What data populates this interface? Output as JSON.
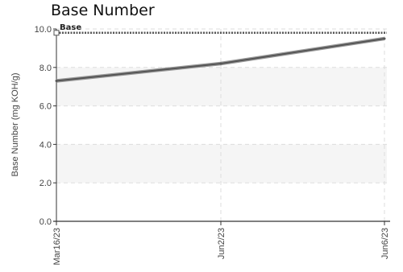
{
  "chart_data": {
    "type": "line",
    "title": "Base Number",
    "ylabel": "Base Number (mg KOH/g)",
    "xlabel": "",
    "ylim": [
      0,
      10
    ],
    "y_ticks": [
      "0.0",
      "2.0",
      "4.0",
      "6.0",
      "8.0",
      "10.0"
    ],
    "categories": [
      "Mar16/23",
      "Jun2/23",
      "Jun6/23"
    ],
    "grid": true,
    "bands": [
      {
        "from": 2,
        "to": 4,
        "color": "#f5f5f5"
      },
      {
        "from": 6,
        "to": 8,
        "color": "#f5f5f5"
      }
    ],
    "series": [
      {
        "values": [
          7.3,
          8.2,
          9.5
        ],
        "color": "#555555"
      }
    ],
    "reference_lines": [
      {
        "label": "Base",
        "value": 9.8,
        "color": "#555555",
        "style": "dotted"
      }
    ]
  }
}
